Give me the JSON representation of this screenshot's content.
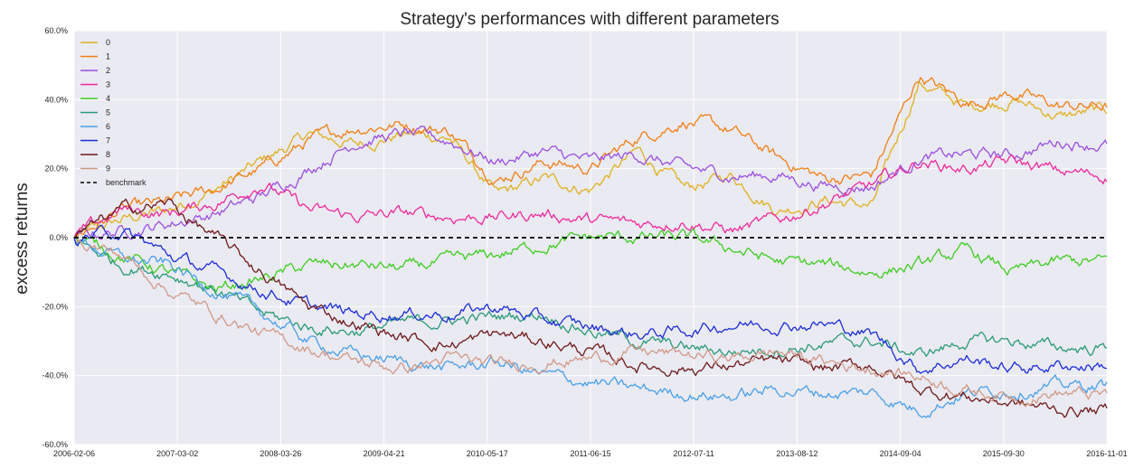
{
  "chart_data": {
    "type": "line",
    "title": "Strategy's performances with different parameters",
    "xlabel": "",
    "ylabel": "excess returns",
    "x_ticks": [
      "2006-02-06",
      "2007-03-02",
      "2008-03-26",
      "2009-04-21",
      "2010-05-17",
      "2011-06-15",
      "2012-07-11",
      "2013-08-12",
      "2014-09-04",
      "2015-09-30",
      "2016-11-01"
    ],
    "y_ticks": [
      "60.0%",
      "40.0%",
      "20.0%",
      "0.0%",
      "-20.0%",
      "-40.0%",
      "-60.0%"
    ],
    "ylim": [
      -60,
      60
    ],
    "grid": true,
    "legend_position": "top-left",
    "series": [
      {
        "name": "0",
        "color": "#e0b020",
        "values": [
          0,
          5,
          8,
          14,
          22,
          30,
          27,
          30,
          29,
          12,
          17,
          14,
          25,
          14,
          18,
          8,
          11,
          9,
          45,
          38,
          40,
          35,
          37
        ]
      },
      {
        "name": "1",
        "color": "#f07f14",
        "values": [
          0,
          8,
          10,
          14,
          20,
          28,
          32,
          33,
          31,
          17,
          22,
          20,
          29,
          34,
          31,
          23,
          17,
          18,
          47,
          39,
          42,
          38,
          38
        ]
      },
      {
        "name": "2",
        "color": "#9b4fe0",
        "values": [
          0,
          2,
          4,
          7,
          12,
          20,
          28,
          30,
          28,
          22,
          25,
          22,
          24,
          20,
          18,
          18,
          15,
          15,
          23,
          24,
          24,
          28,
          27
        ]
      },
      {
        "name": "3",
        "color": "#ee2a9c",
        "values": [
          0,
          8,
          7,
          10,
          16,
          8,
          6,
          7,
          6,
          6,
          7,
          5,
          4,
          5,
          2,
          5,
          10,
          15,
          22,
          20,
          22,
          19,
          18
        ]
      },
      {
        "name": "4",
        "color": "#3fcc22",
        "values": [
          0,
          -5,
          -10,
          -15,
          -12,
          -8,
          -8,
          -9,
          -7,
          -5,
          -2,
          0,
          0,
          0,
          -3,
          -7,
          -8,
          -10,
          -8,
          -4,
          -10,
          -7,
          -7
        ]
      },
      {
        "name": "5",
        "color": "#2a9a78",
        "values": [
          0,
          -8,
          -10,
          -15,
          -22,
          -26,
          -27,
          -25,
          -24,
          -23,
          -22,
          -27,
          -30,
          -32,
          -33,
          -32,
          -31,
          -30,
          -34,
          -30,
          -30,
          -32,
          -32
        ]
      },
      {
        "name": "6",
        "color": "#4aa0e8",
        "values": [
          0,
          -6,
          -8,
          -15,
          -22,
          -30,
          -34,
          -36,
          -38,
          -36,
          -40,
          -42,
          -44,
          -45,
          -46,
          -44,
          -45,
          -45,
          -50,
          -45,
          -44,
          -43,
          -43
        ]
      },
      {
        "name": "7",
        "color": "#1d2ed8",
        "values": [
          0,
          2,
          -5,
          -10,
          -15,
          -20,
          -22,
          -22,
          -22,
          -20,
          -24,
          -26,
          -28,
          -27,
          -25,
          -25,
          -25,
          -28,
          -38,
          -35,
          -38,
          -37,
          -37
        ]
      },
      {
        "name": "8",
        "color": "#6e1a1a",
        "values": [
          0,
          8,
          10,
          0,
          -10,
          -20,
          -25,
          -29,
          -31,
          -28,
          -30,
          -33,
          -37,
          -38,
          -37,
          -36,
          -38,
          -37,
          -44,
          -46,
          -48,
          -50,
          -50
        ]
      },
      {
        "name": "9",
        "color": "#d09a88",
        "values": [
          0,
          -5,
          -15,
          -22,
          -28,
          -32,
          -36,
          -38,
          -35,
          -37,
          -36,
          -35,
          -33,
          -34,
          -35,
          -33,
          -36,
          -38,
          -40,
          -44,
          -46,
          -45,
          -46
        ]
      },
      {
        "name": "benchmark",
        "color": "#000000",
        "dashed": true,
        "values": [
          0,
          0
        ]
      }
    ]
  }
}
